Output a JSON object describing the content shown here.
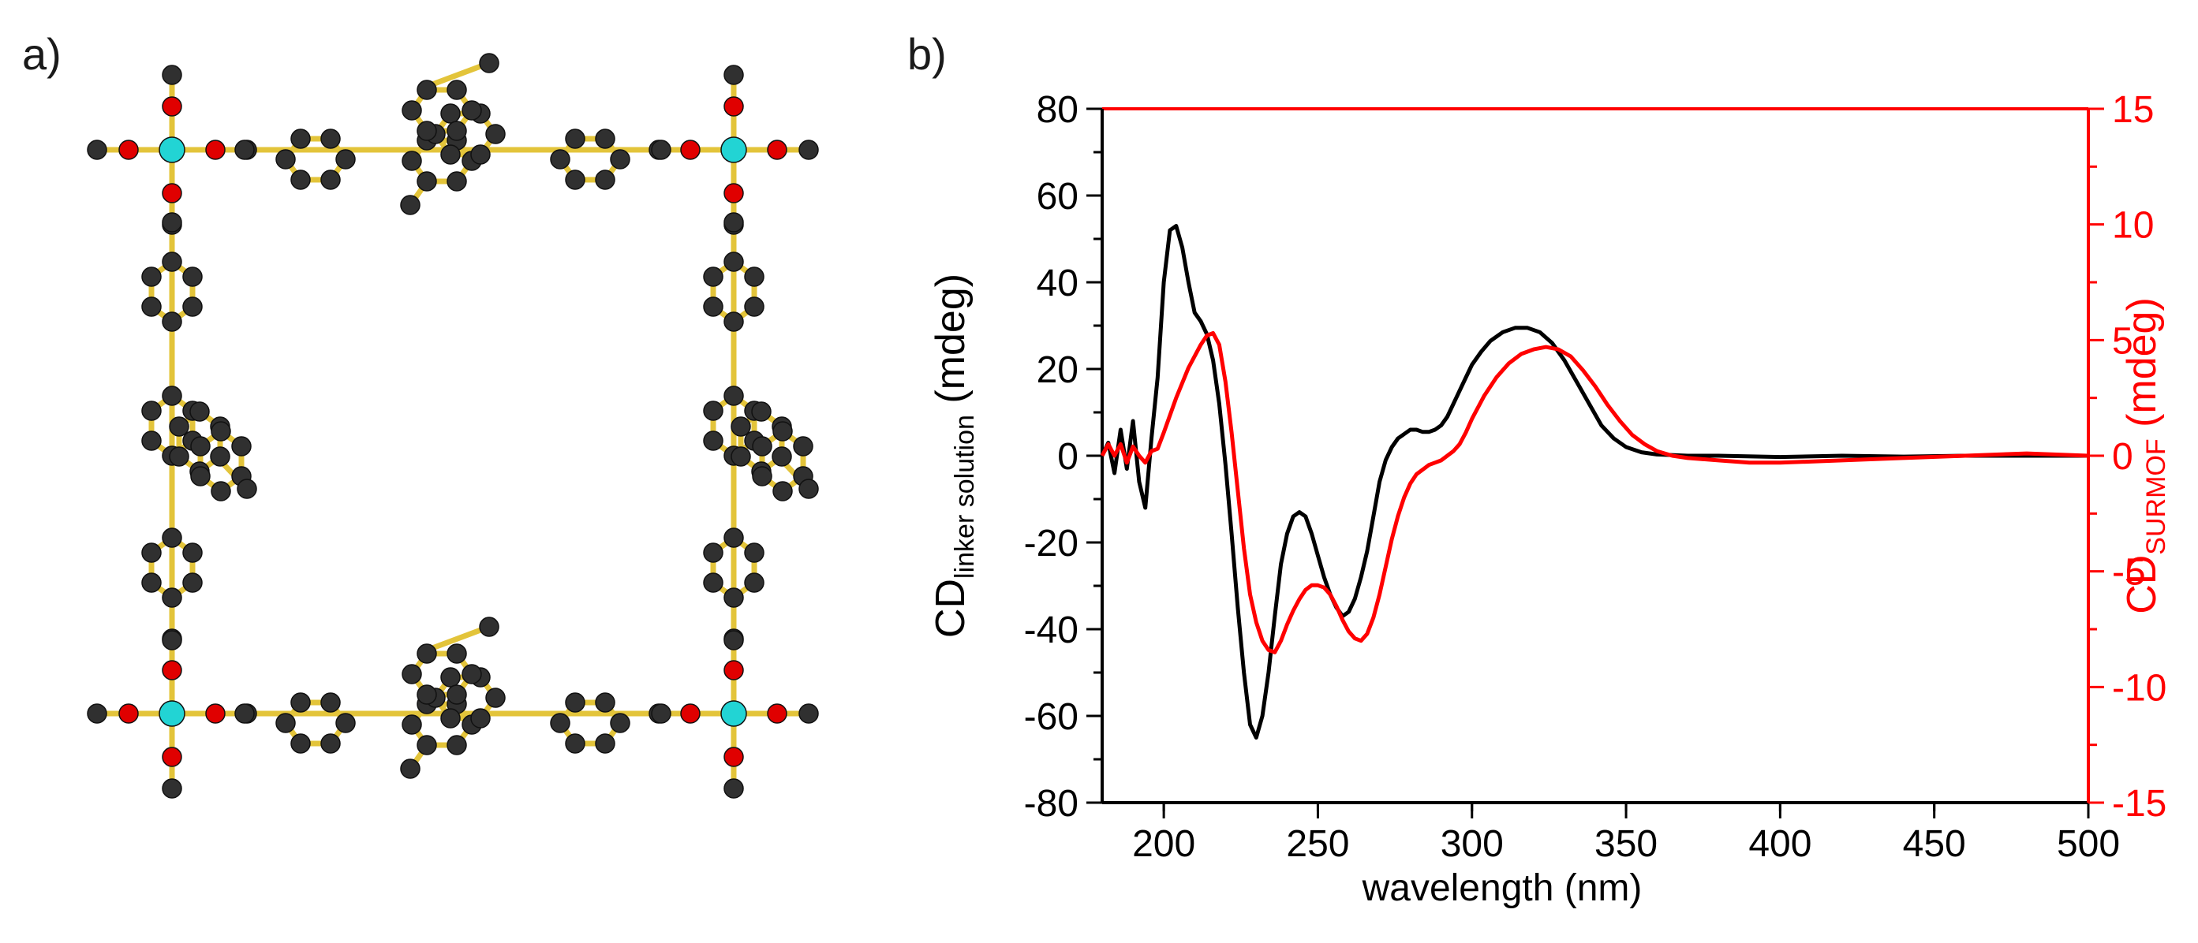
{
  "panels": {
    "a": {
      "label": "a)"
    },
    "b": {
      "label": "b)"
    }
  },
  "colors": {
    "left_axis": "#000000",
    "right_axis": "#ff0000",
    "bond": "#e3c43a",
    "carbon": "#303030",
    "oxygen": "#e00000",
    "metal": "#22d4d4"
  },
  "chart_data": {
    "type": "line",
    "xlabel": "wavelength (nm)",
    "ylabel_left": {
      "main": "CD",
      "sub": "linker solution",
      "unit": " (mdeg)"
    },
    "ylabel_right": {
      "main": "CD",
      "sub": "SURMOF",
      "unit": " (mdeg)"
    },
    "xlim": [
      180,
      500
    ],
    "ylim_left": [
      -80,
      80
    ],
    "ylim_right": [
      -15,
      15
    ],
    "x_ticks": [
      "200",
      "250",
      "300",
      "350",
      "400",
      "450",
      "500"
    ],
    "y_left_ticks": [
      "80",
      "60",
      "40",
      "20",
      "0",
      "-20",
      "-40",
      "-60",
      "-80"
    ],
    "y_right_ticks": [
      "15",
      "10",
      "5",
      "0",
      "-5",
      "-10",
      "-15"
    ],
    "series": [
      {
        "name": "CD linker solution",
        "axis": "left",
        "color": "#000000",
        "points": [
          [
            180,
            0
          ],
          [
            182,
            3
          ],
          [
            184,
            -4
          ],
          [
            186,
            6
          ],
          [
            188,
            -3
          ],
          [
            190,
            8
          ],
          [
            192,
            -6
          ],
          [
            194,
            -12
          ],
          [
            196,
            4
          ],
          [
            198,
            18
          ],
          [
            200,
            40
          ],
          [
            202,
            52
          ],
          [
            204,
            53
          ],
          [
            206,
            48
          ],
          [
            208,
            40
          ],
          [
            210,
            33
          ],
          [
            212,
            31
          ],
          [
            214,
            28
          ],
          [
            216,
            22
          ],
          [
            218,
            12
          ],
          [
            220,
            -2
          ],
          [
            222,
            -18
          ],
          [
            224,
            -35
          ],
          [
            226,
            -50
          ],
          [
            228,
            -62
          ],
          [
            230,
            -65
          ],
          [
            232,
            -60
          ],
          [
            234,
            -50
          ],
          [
            236,
            -37
          ],
          [
            238,
            -25
          ],
          [
            240,
            -18
          ],
          [
            242,
            -14
          ],
          [
            244,
            -13
          ],
          [
            246,
            -14
          ],
          [
            248,
            -18
          ],
          [
            250,
            -23
          ],
          [
            252,
            -28
          ],
          [
            254,
            -32
          ],
          [
            256,
            -35
          ],
          [
            258,
            -37
          ],
          [
            260,
            -36
          ],
          [
            262,
            -33
          ],
          [
            264,
            -28
          ],
          [
            266,
            -22
          ],
          [
            268,
            -14
          ],
          [
            270,
            -6
          ],
          [
            272,
            -1
          ],
          [
            274,
            2
          ],
          [
            276,
            4
          ],
          [
            278,
            5
          ],
          [
            280,
            6
          ],
          [
            282,
            6
          ],
          [
            284,
            5.5
          ],
          [
            286,
            5.5
          ],
          [
            288,
            6
          ],
          [
            290,
            7
          ],
          [
            292,
            9
          ],
          [
            294,
            12
          ],
          [
            296,
            15
          ],
          [
            298,
            18
          ],
          [
            300,
            21
          ],
          [
            303,
            24
          ],
          [
            306,
            26.5
          ],
          [
            310,
            28.5
          ],
          [
            314,
            29.5
          ],
          [
            318,
            29.5
          ],
          [
            322,
            28.5
          ],
          [
            326,
            26
          ],
          [
            330,
            22
          ],
          [
            334,
            17
          ],
          [
            338,
            12
          ],
          [
            342,
            7
          ],
          [
            346,
            4
          ],
          [
            350,
            2
          ],
          [
            355,
            0.8
          ],
          [
            360,
            0.3
          ],
          [
            370,
            0
          ],
          [
            380,
            0
          ],
          [
            400,
            -0.3
          ],
          [
            420,
            0
          ],
          [
            440,
            -0.2
          ],
          [
            460,
            0
          ],
          [
            480,
            0
          ],
          [
            500,
            0
          ]
        ]
      },
      {
        "name": "CD SURMOF",
        "axis": "right",
        "color": "#ff0000",
        "points": [
          [
            180,
            0
          ],
          [
            182,
            0.5
          ],
          [
            184,
            0
          ],
          [
            186,
            0.5
          ],
          [
            188,
            -0.3
          ],
          [
            190,
            0.4
          ],
          [
            192,
            0
          ],
          [
            194,
            -0.3
          ],
          [
            196,
            0.2
          ],
          [
            198,
            0.3
          ],
          [
            200,
            1
          ],
          [
            204,
            2.5
          ],
          [
            208,
            3.8
          ],
          [
            212,
            4.8
          ],
          [
            214,
            5.2
          ],
          [
            216,
            5.3
          ],
          [
            218,
            4.8
          ],
          [
            220,
            3.2
          ],
          [
            222,
            1
          ],
          [
            224,
            -1.5
          ],
          [
            226,
            -4
          ],
          [
            228,
            -6
          ],
          [
            230,
            -7.2
          ],
          [
            232,
            -8
          ],
          [
            234,
            -8.4
          ],
          [
            236,
            -8.5
          ],
          [
            238,
            -8
          ],
          [
            240,
            -7.3
          ],
          [
            242,
            -6.7
          ],
          [
            244,
            -6.2
          ],
          [
            246,
            -5.8
          ],
          [
            248,
            -5.6
          ],
          [
            250,
            -5.6
          ],
          [
            252,
            -5.7
          ],
          [
            254,
            -6
          ],
          [
            256,
            -6.5
          ],
          [
            258,
            -7.1
          ],
          [
            260,
            -7.6
          ],
          [
            262,
            -7.9
          ],
          [
            264,
            -8
          ],
          [
            266,
            -7.7
          ],
          [
            268,
            -7
          ],
          [
            270,
            -6
          ],
          [
            272,
            -4.8
          ],
          [
            274,
            -3.6
          ],
          [
            276,
            -2.6
          ],
          [
            278,
            -1.8
          ],
          [
            280,
            -1.2
          ],
          [
            282,
            -0.8
          ],
          [
            284,
            -0.6
          ],
          [
            286,
            -0.4
          ],
          [
            288,
            -0.3
          ],
          [
            290,
            -0.2
          ],
          [
            292,
            0
          ],
          [
            294,
            0.2
          ],
          [
            296,
            0.5
          ],
          [
            298,
            1
          ],
          [
            300,
            1.6
          ],
          [
            304,
            2.6
          ],
          [
            308,
            3.4
          ],
          [
            312,
            4
          ],
          [
            316,
            4.4
          ],
          [
            320,
            4.6
          ],
          [
            324,
            4.7
          ],
          [
            328,
            4.6
          ],
          [
            332,
            4.3
          ],
          [
            336,
            3.7
          ],
          [
            340,
            3
          ],
          [
            344,
            2.2
          ],
          [
            348,
            1.5
          ],
          [
            352,
            0.9
          ],
          [
            356,
            0.5
          ],
          [
            360,
            0.2
          ],
          [
            365,
            0
          ],
          [
            370,
            -0.1
          ],
          [
            380,
            -0.2
          ],
          [
            390,
            -0.3
          ],
          [
            400,
            -0.3
          ],
          [
            420,
            -0.2
          ],
          [
            440,
            -0.1
          ],
          [
            460,
            0
          ],
          [
            480,
            0.1
          ],
          [
            500,
            0
          ]
        ]
      }
    ]
  }
}
